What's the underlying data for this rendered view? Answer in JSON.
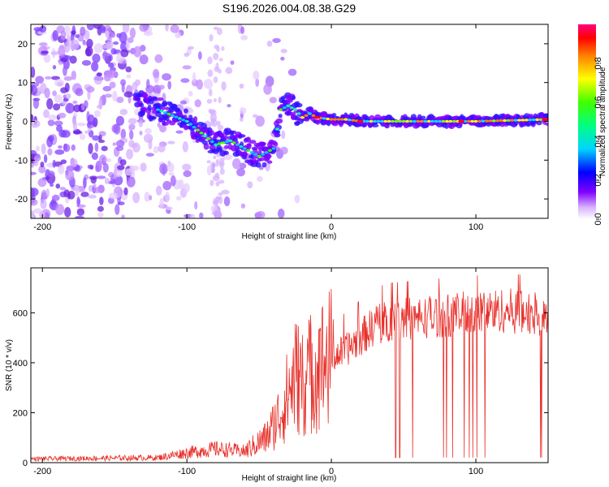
{
  "title": "S196.2026.004.08.38.G29",
  "chart_data": [
    {
      "type": "heatmap",
      "title": "S196.2026.004.08.38.G29",
      "xlabel": "Height of straight line (km)",
      "ylabel": "Frequency (Hz)",
      "xlim": [
        -208,
        150
      ],
      "ylim": [
        -25,
        25
      ],
      "xticks": [
        -200,
        -100,
        0,
        100
      ],
      "yticks": [
        -20,
        -10,
        0,
        10,
        20
      ],
      "ridge": {
        "x": [
          -135,
          -120,
          -100,
          -90,
          -80,
          -70,
          -60,
          -50,
          -40,
          -35,
          -30,
          -25,
          -20,
          -15,
          -10,
          0,
          10,
          20,
          50,
          100,
          150
        ],
        "y": [
          5,
          3,
          0,
          -3,
          -6,
          -5,
          -7,
          -9,
          -7,
          3,
          4,
          3,
          1,
          2,
          1,
          0.5,
          0.5,
          0,
          0,
          0,
          0.5
        ]
      },
      "colorbar": {
        "label": "Normalized spectral amplitude",
        "range": [
          0,
          1
        ],
        "ticks": [
          "0.0",
          "0.2",
          "0.4",
          "0.6",
          "0.8"
        ]
      }
    },
    {
      "type": "line",
      "xlabel": "Height of straight line (km)",
      "ylabel": "SNR (10 * v/v)",
      "xlim": [
        -208,
        150
      ],
      "ylim": [
        0,
        780
      ],
      "xticks": [
        -200,
        -100,
        0,
        100
      ],
      "yticks": [
        0,
        200,
        400,
        600
      ],
      "series": [
        {
          "name": "SNR",
          "color": "#e8302a",
          "envelope_x": [
            -208,
            -120,
            -100,
            -80,
            -60,
            -45,
            -35,
            -25,
            -20,
            -10,
            0,
            10,
            20,
            30,
            40,
            60,
            80,
            100,
            120,
            150
          ],
          "envelope_y": [
            15,
            20,
            40,
            55,
            45,
            100,
            200,
            350,
            330,
            380,
            420,
            450,
            500,
            550,
            570,
            580,
            590,
            600,
            610,
            590
          ]
        }
      ]
    }
  ]
}
